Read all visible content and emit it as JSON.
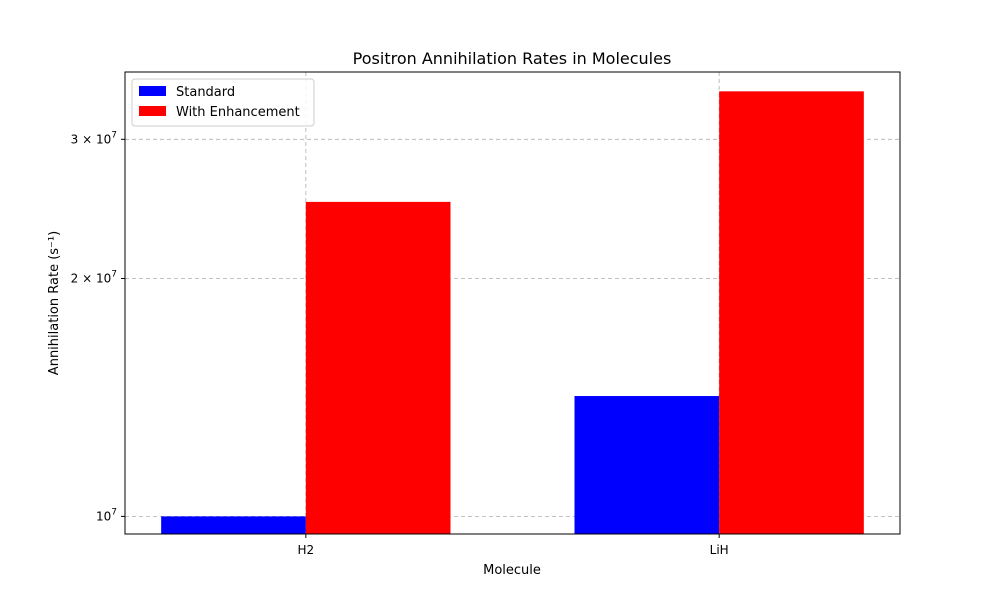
{
  "chart_data": {
    "type": "bar",
    "title": "Positron Annihilation Rates in Molecules",
    "xlabel": "Molecule",
    "ylabel": "Annihilation Rate (s⁻¹)",
    "categories": [
      "H2",
      "LiH"
    ],
    "series": [
      {
        "name": "Standard",
        "color": "#0000ff",
        "values": [
          10000000,
          14200000
        ]
      },
      {
        "name": "With Enhancement",
        "color": "#ff0000",
        "values": [
          25000000,
          34500000
        ]
      }
    ],
    "y_scale": "log",
    "ylim": [
      9500000,
      36500000
    ],
    "y_ticks": [
      {
        "value": 10000000,
        "mantissa": "",
        "base": "10",
        "exponent": "7"
      },
      {
        "value": 20000000,
        "mantissa": "2 × ",
        "base": "10",
        "exponent": "7"
      },
      {
        "value": 30000000,
        "mantissa": "3 × ",
        "base": "10",
        "exponent": "7"
      }
    ],
    "grid": true,
    "legend_position": "top-left"
  }
}
